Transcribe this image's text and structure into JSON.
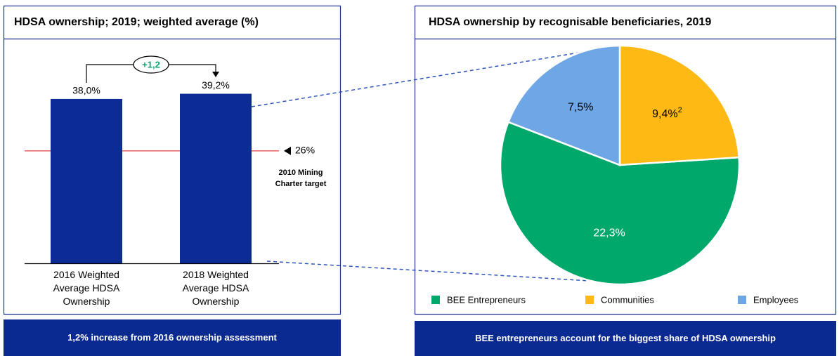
{
  "chart_data": [
    {
      "type": "bar",
      "title": "HDSA ownership; 2019; weighted average (%)",
      "categories": [
        "2016 Weighted Average HDSA Ownership",
        "2018 Weighted Average HDSA Ownership"
      ],
      "values": [
        38.0,
        39.2
      ],
      "value_labels": [
        "38,0%",
        "39,2%"
      ],
      "color": "#0c2b97",
      "difference_label": "+1,2",
      "reference": {
        "value": 26,
        "label": "26%",
        "text": "2010 Mining Charter target",
        "color": "#e0403f"
      },
      "caption": "1,2% increase from 2016 ownership assessment"
    },
    {
      "type": "pie",
      "title": "HDSA ownership by recognisable beneficiaries, 2019",
      "categories": [
        "BEE Entrepreneurs",
        "Communities",
        "Employees"
      ],
      "values": [
        22.3,
        9.4,
        7.5
      ],
      "value_labels": [
        "22,3%",
        "9,4%",
        "7,5%"
      ],
      "value_footnotes": [
        null,
        "2",
        null
      ],
      "colors": [
        "#00a86b",
        "#ffb915",
        "#6ea6e6"
      ],
      "caption": "BEE entrepreneurs account for the biggest share of HDSA ownership"
    }
  ]
}
